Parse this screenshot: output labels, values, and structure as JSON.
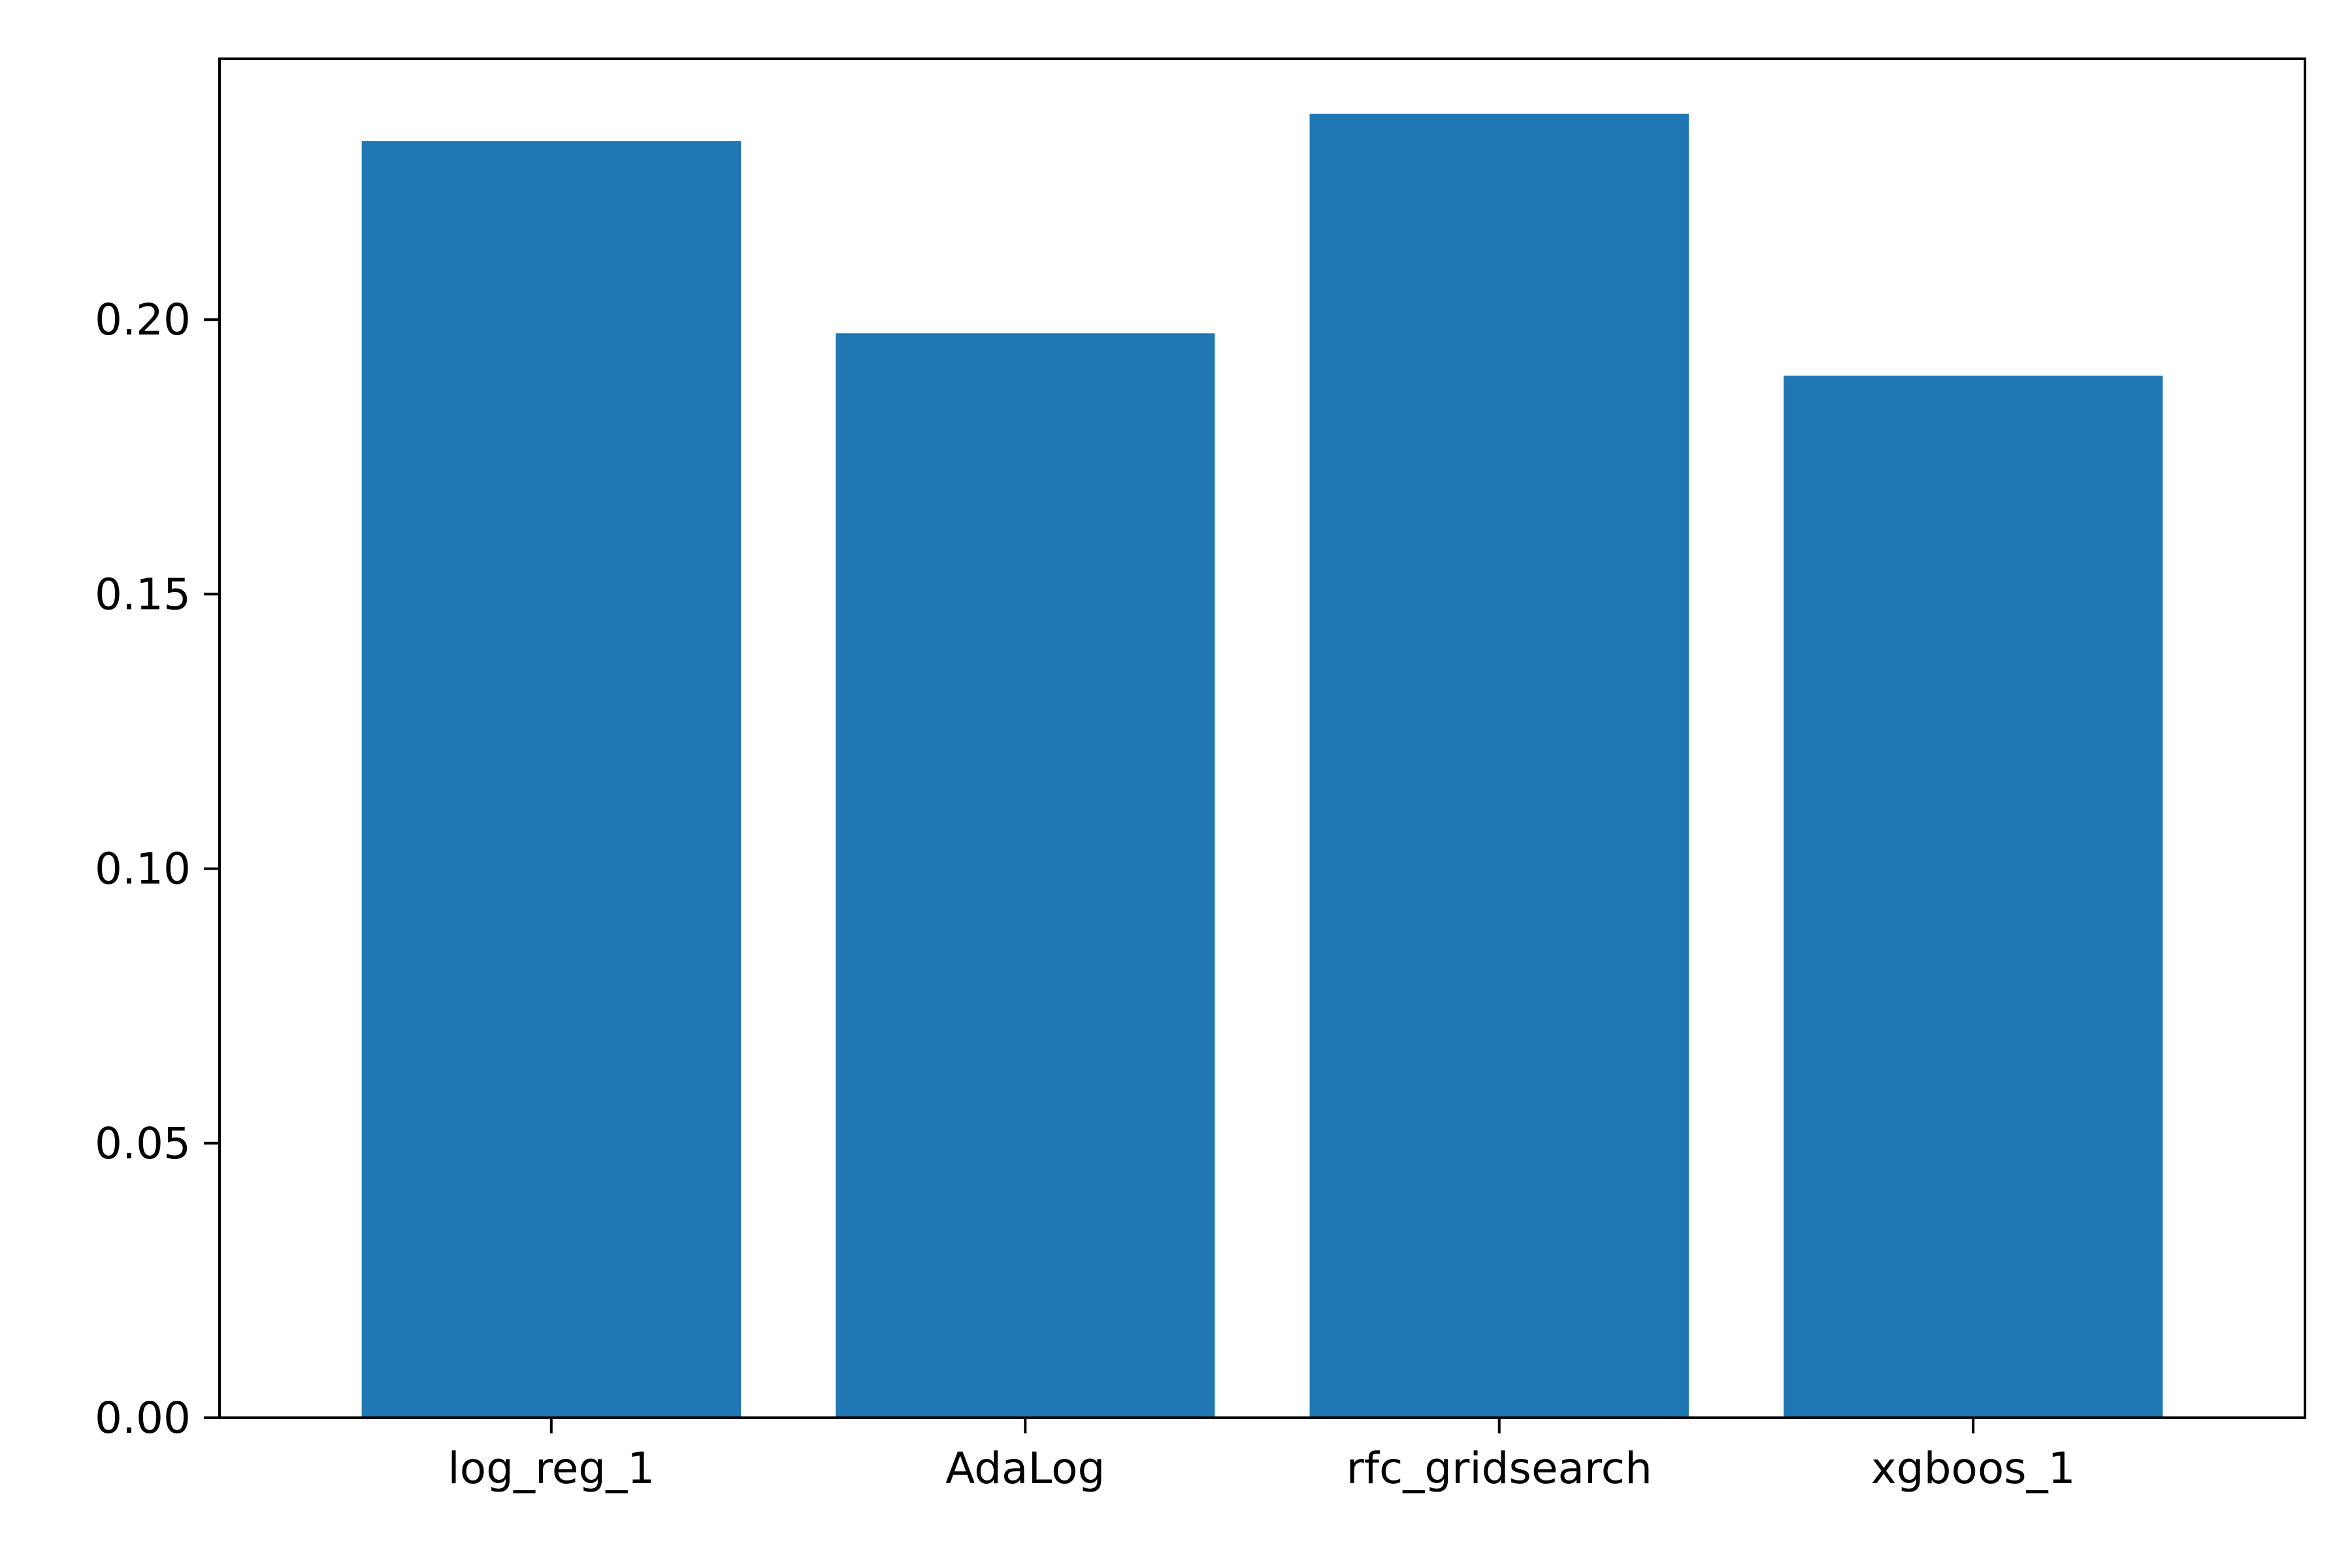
{
  "chart_data": {
    "type": "bar",
    "title": "",
    "xlabel": "",
    "ylabel": "",
    "categories": [
      "log_reg_1",
      "AdaLog",
      "rfc_gridsearch",
      "xgboos_1"
    ],
    "values": [
      0.2325,
      0.1975,
      0.2375,
      0.1898
    ],
    "ylim": [
      0.0,
      0.2475
    ],
    "yticks": [
      0.0,
      0.05,
      0.1,
      0.15,
      0.2
    ],
    "ytick_labels": [
      "0.00",
      "0.05",
      "0.10",
      "0.15",
      "0.20"
    ],
    "bar_color": "#1f77b4",
    "grid": false,
    "legend": "none"
  }
}
